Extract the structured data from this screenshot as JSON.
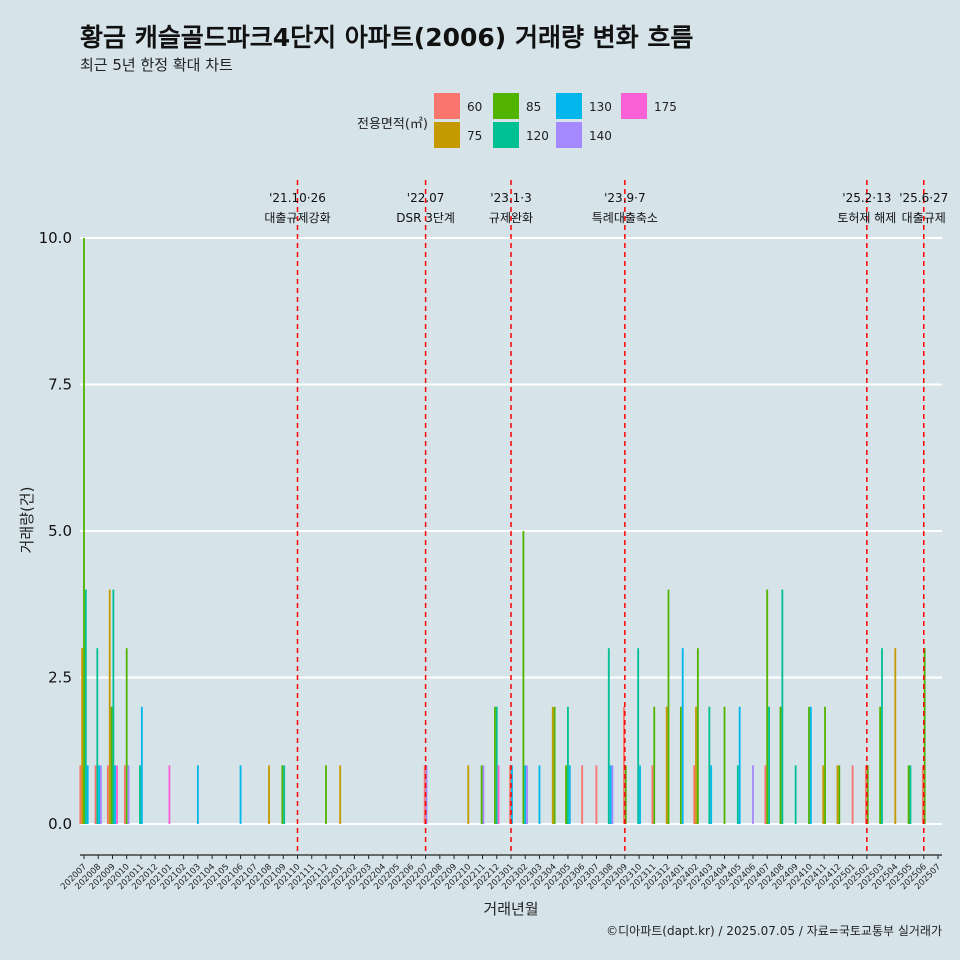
{
  "title": "황금 캐슬골드파크4단지 아파트(2006) 거래량 변화 흐름",
  "subtitle": "최근 5년 한정 확대 차트",
  "caption": "©디아파트(dapt.kr) / 2025.07.05 / 자료=국토교통부 실거래가",
  "colors": {
    "60": "#f8766d",
    "75": "#c49a00",
    "85": "#53b400",
    "120": "#00c094",
    "130": "#00b6eb",
    "140": "#a58aff",
    "175": "#fb61d7",
    "background": "#d6e4ea",
    "grid": "#ffffff",
    "event_line": "#ff0000"
  },
  "chart_data": {
    "type": "bar",
    "title": "황금 캐슬골드파크4단지 아파트(2006) 거래량 변화 흐름",
    "subtitle": "최근 5년 한정 확대 차트",
    "xlabel": "거래년월",
    "ylabel": "거래량(건)",
    "ylim": [
      0,
      10
    ],
    "yticks": [
      "0.0",
      "2.5",
      "5.0",
      "7.5",
      "10.0"
    ],
    "grid": true,
    "legend": {
      "title": "전용면적(㎡)",
      "position": "top",
      "entries": [
        "60",
        "75",
        "85",
        "120",
        "130",
        "140",
        "175"
      ]
    },
    "categories": [
      "202007",
      "202008",
      "202009",
      "202010",
      "202011",
      "202012",
      "202101",
      "202102",
      "202103",
      "202104",
      "202105",
      "202106",
      "202107",
      "202108",
      "202109",
      "202110",
      "202111",
      "202112",
      "202201",
      "202202",
      "202203",
      "202204",
      "202205",
      "202206",
      "202207",
      "202208",
      "202209",
      "202210",
      "202211",
      "202212",
      "202301",
      "202302",
      "202303",
      "202304",
      "202305",
      "202306",
      "202307",
      "202308",
      "202309",
      "202310",
      "202311",
      "202312",
      "202401",
      "202402",
      "202403",
      "202404",
      "202405",
      "202406",
      "202407",
      "202408",
      "202409",
      "202410",
      "202411",
      "202412",
      "202501",
      "202502",
      "202503",
      "202504",
      "202505",
      "202506",
      "202507"
    ],
    "bars": [
      {
        "month": "202007",
        "values": {
          "60": 1,
          "75": 3,
          "85": 10,
          "120": 4,
          "130": 1
        }
      },
      {
        "month": "202008",
        "values": {
          "60": 1,
          "120": 3,
          "130": 1,
          "140": 1
        }
      },
      {
        "month": "202009",
        "values": {
          "60": 1,
          "75": 4,
          "85": 2,
          "120": 4,
          "130": 1,
          "175": 1
        }
      },
      {
        "month": "202010",
        "values": {
          "60": 1,
          "85": 3,
          "140": 1
        }
      },
      {
        "month": "202011",
        "values": {
          "120": 1,
          "130": 2
        }
      },
      {
        "month": "202101",
        "values": {
          "175": 1
        }
      },
      {
        "month": "202103",
        "values": {
          "130": 1
        }
      },
      {
        "month": "202106",
        "values": {
          "130": 1
        }
      },
      {
        "month": "202108",
        "values": {
          "75": 1
        }
      },
      {
        "month": "202109",
        "values": {
          "85": 1,
          "120": 1
        }
      },
      {
        "month": "202112",
        "values": {
          "85": 1
        }
      },
      {
        "month": "202201",
        "values": {
          "75": 1
        }
      },
      {
        "month": "202207",
        "values": {
          "60": 1,
          "140": 1
        }
      },
      {
        "month": "202210",
        "values": {
          "75": 1
        }
      },
      {
        "month": "202211",
        "values": {
          "85": 1,
          "140": 1
        }
      },
      {
        "month": "202212",
        "values": {
          "85": 2,
          "120": 2,
          "175": 1
        }
      },
      {
        "month": "202301",
        "values": {
          "60": 1,
          "130": 1
        }
      },
      {
        "month": "202302",
        "values": {
          "85": 5,
          "130": 1,
          "140": 1
        }
      },
      {
        "month": "202303",
        "values": {
          "130": 1
        }
      },
      {
        "month": "202304",
        "values": {
          "75": 2,
          "85": 2
        }
      },
      {
        "month": "202305",
        "values": {
          "85": 1,
          "120": 2,
          "130": 1
        }
      },
      {
        "month": "202306",
        "values": {
          "60": 1
        }
      },
      {
        "month": "202307",
        "values": {
          "60": 1
        }
      },
      {
        "month": "202308",
        "values": {
          "120": 3,
          "130": 1,
          "140": 1
        }
      },
      {
        "month": "202309",
        "values": {
          "60": 2,
          "85": 1
        }
      },
      {
        "month": "202310",
        "values": {
          "120": 3,
          "130": 1
        }
      },
      {
        "month": "202311",
        "values": {
          "85": 2,
          "60": 1
        }
      },
      {
        "month": "202312",
        "values": {
          "75": 2,
          "85": 4
        }
      },
      {
        "month": "202401",
        "values": {
          "85": 2,
          "130": 3
        }
      },
      {
        "month": "202402",
        "values": {
          "60": 1,
          "75": 2,
          "85": 3
        }
      },
      {
        "month": "202403",
        "values": {
          "120": 2,
          "130": 1
        }
      },
      {
        "month": "202404",
        "values": {
          "85": 2
        }
      },
      {
        "month": "202405",
        "values": {
          "120": 1,
          "130": 2
        }
      },
      {
        "month": "202406",
        "values": {
          "140": 1
        }
      },
      {
        "month": "202407",
        "values": {
          "60": 1,
          "85": 4,
          "120": 2
        }
      },
      {
        "month": "202408",
        "values": {
          "85": 2,
          "120": 4
        }
      },
      {
        "month": "202409",
        "values": {
          "120": 1
        }
      },
      {
        "month": "202410",
        "values": {
          "85": 2,
          "130": 2
        }
      },
      {
        "month": "202411",
        "values": {
          "85": 2,
          "75": 1
        }
      },
      {
        "month": "202412",
        "values": {
          "85": 1,
          "75": 1
        }
      },
      {
        "month": "202501",
        "values": {
          "60": 1
        }
      },
      {
        "month": "202502",
        "values": {
          "60": 1,
          "85": 1
        }
      },
      {
        "month": "202503",
        "values": {
          "85": 2,
          "120": 3
        }
      },
      {
        "month": "202504",
        "values": {
          "75": 3
        }
      },
      {
        "month": "202505",
        "values": {
          "85": 1,
          "120": 1
        }
      },
      {
        "month": "202506",
        "values": {
          "60": 1,
          "85": 3
        }
      }
    ],
    "annotations": [
      {
        "month": "202110",
        "date": "'21.10·26",
        "label": "대출규제강화"
      },
      {
        "month": "202207",
        "date": "'22.07",
        "label": "DSR 3단계"
      },
      {
        "month": "202301",
        "date": "'23.1·3",
        "label": "규제완화"
      },
      {
        "month": "202309",
        "date": "'23.9·7",
        "label": "특례대출축소"
      },
      {
        "month": "202502",
        "date": "'25.2·13",
        "label": "토허제 해제"
      },
      {
        "month": "202506",
        "date": "'25.6·27",
        "label": "대출규제"
      }
    ]
  }
}
